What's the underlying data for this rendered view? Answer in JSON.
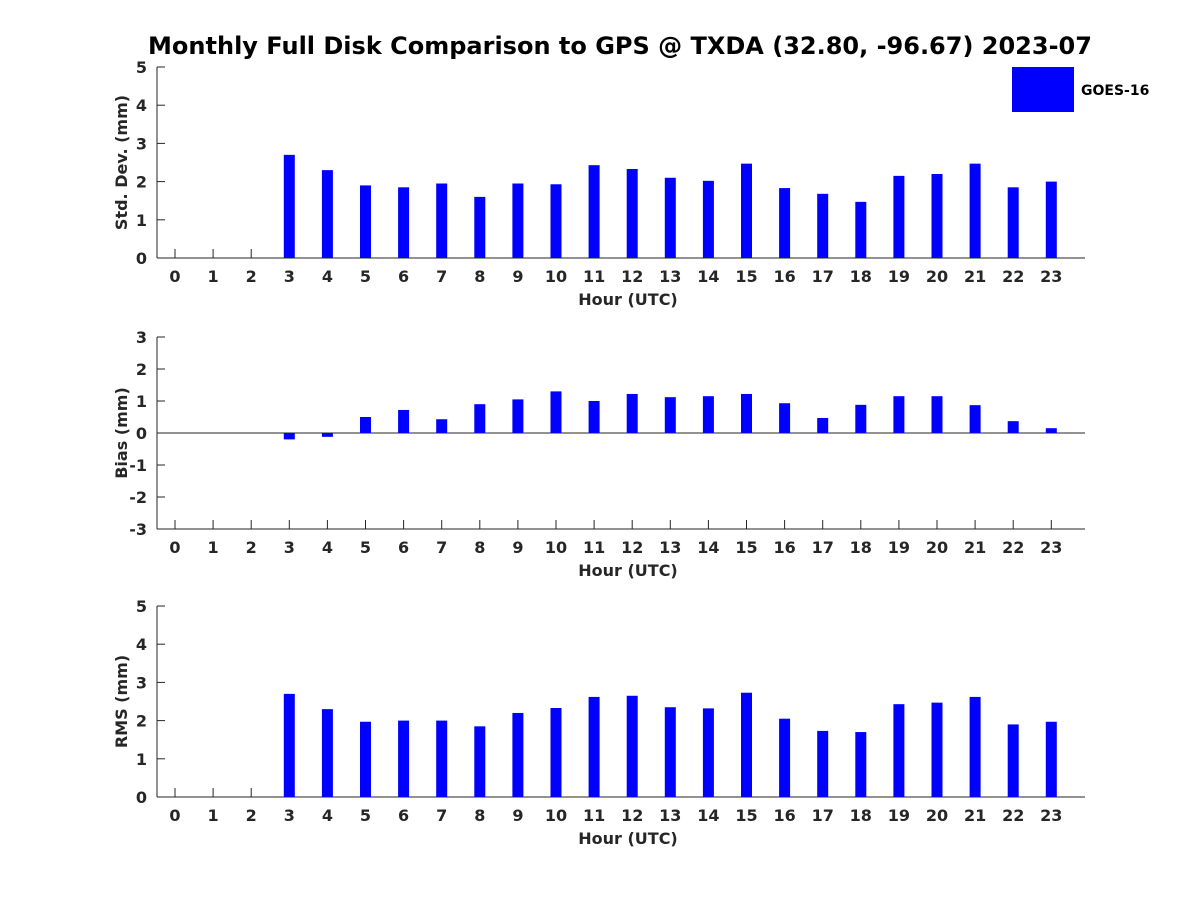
{
  "title": "Monthly Full Disk Comparison to GPS @ TXDA (32.80, -96.67) 2023-07",
  "legend": {
    "label": "GOES-16",
    "color": "#0000ff",
    "placement": "top-right"
  },
  "chart_data": [
    {
      "type": "bar",
      "ylabel": "Std. Dev. (mm)",
      "xlabel": "Hour (UTC)",
      "ylim": [
        0,
        5
      ],
      "yticks": [
        0,
        1,
        2,
        3,
        4,
        5
      ],
      "grid": false,
      "categories": [
        "0",
        "1",
        "2",
        "3",
        "4",
        "5",
        "6",
        "7",
        "8",
        "9",
        "10",
        "11",
        "12",
        "13",
        "14",
        "15",
        "16",
        "17",
        "18",
        "19",
        "20",
        "21",
        "22",
        "23"
      ],
      "series": [
        {
          "name": "GOES-16",
          "values": [
            null,
            null,
            null,
            2.7,
            2.3,
            1.9,
            1.85,
            1.95,
            1.6,
            1.95,
            1.93,
            2.43,
            2.33,
            2.1,
            2.02,
            2.47,
            1.83,
            1.68,
            1.47,
            2.15,
            2.2,
            2.47,
            1.85,
            2.0
          ]
        }
      ]
    },
    {
      "type": "bar",
      "ylabel": "Bias (mm)",
      "xlabel": "Hour (UTC)",
      "ylim": [
        -3,
        3
      ],
      "yticks": [
        -3,
        -2,
        -1,
        0,
        1,
        2,
        3
      ],
      "grid": false,
      "categories": [
        "0",
        "1",
        "2",
        "3",
        "4",
        "5",
        "6",
        "7",
        "8",
        "9",
        "10",
        "11",
        "12",
        "13",
        "14",
        "15",
        "16",
        "17",
        "18",
        "19",
        "20",
        "21",
        "22",
        "23"
      ],
      "series": [
        {
          "name": "GOES-16",
          "values": [
            null,
            null,
            null,
            -0.2,
            -0.12,
            0.5,
            0.72,
            0.43,
            0.9,
            1.05,
            1.3,
            1.0,
            1.22,
            1.12,
            1.15,
            1.22,
            0.93,
            0.47,
            0.88,
            1.15,
            1.15,
            0.87,
            0.37,
            0.15
          ]
        }
      ]
    },
    {
      "type": "bar",
      "ylabel": "RMS (mm)",
      "xlabel": "Hour (UTC)",
      "ylim": [
        0,
        5
      ],
      "yticks": [
        0,
        1,
        2,
        3,
        4,
        5
      ],
      "grid": false,
      "categories": [
        "0",
        "1",
        "2",
        "3",
        "4",
        "5",
        "6",
        "7",
        "8",
        "9",
        "10",
        "11",
        "12",
        "13",
        "14",
        "15",
        "16",
        "17",
        "18",
        "19",
        "20",
        "21",
        "22",
        "23"
      ],
      "series": [
        {
          "name": "GOES-16",
          "values": [
            null,
            null,
            null,
            2.7,
            2.3,
            1.97,
            2.0,
            2.0,
            1.85,
            2.2,
            2.33,
            2.62,
            2.65,
            2.35,
            2.32,
            2.73,
            2.05,
            1.73,
            1.7,
            2.43,
            2.47,
            2.62,
            1.9,
            1.97
          ]
        }
      ]
    }
  ]
}
